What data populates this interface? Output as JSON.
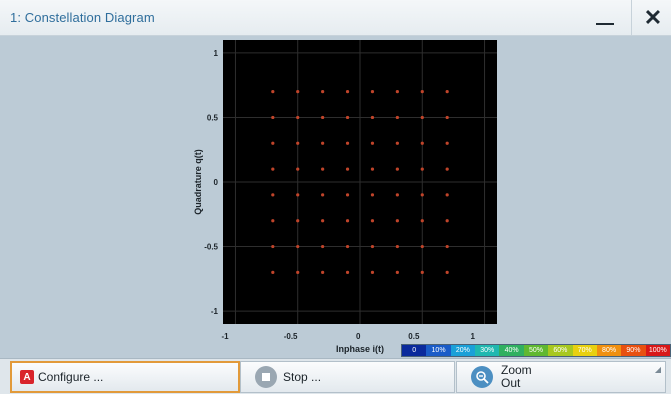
{
  "window": {
    "title": "1: Constellation Diagram",
    "minimize_icon": "minimize-icon",
    "close_icon": "close-icon"
  },
  "chart_data": {
    "type": "scatter",
    "xlabel": "Inphase i(t)",
    "ylabel": "Quadrature q(t)",
    "xlim": [
      -1.1,
      1.1
    ],
    "ylim": [
      -1.1,
      1.1
    ],
    "x_ticks": [
      "-1",
      "-0.5",
      "0",
      "0.5",
      "1"
    ],
    "y_ticks": [
      "1",
      "0.5",
      "0",
      "-0.5",
      "-1"
    ],
    "grid": true,
    "background": "#000000",
    "point_color": "#c0442a",
    "points_i": [
      -0.7,
      -0.5,
      -0.3,
      -0.1,
      0.1,
      0.3,
      0.5,
      0.7
    ],
    "points_q": [
      0.7,
      0.5,
      0.3,
      0.1,
      -0.1,
      -0.3,
      -0.5,
      -0.7
    ]
  },
  "colorbar": {
    "labels": [
      "0",
      "10%",
      "20%",
      "30%",
      "40%",
      "50%",
      "60%",
      "70%",
      "80%",
      "90%",
      "100%"
    ],
    "colors": [
      "#0a2a9c",
      "#1a5cc8",
      "#1aa0d8",
      "#20b8b0",
      "#30b060",
      "#60b830",
      "#a8c820",
      "#e8d010",
      "#f09010",
      "#e85010",
      "#d81818"
    ]
  },
  "toolbar": {
    "configure_key": "A",
    "configure_label": "Configure ...",
    "stop_label": "Stop ...",
    "zoom_line1": "Zoom",
    "zoom_line2": "Out",
    "zoom_icon": "zoom-out-icon",
    "stop_icon": "stop-icon"
  }
}
